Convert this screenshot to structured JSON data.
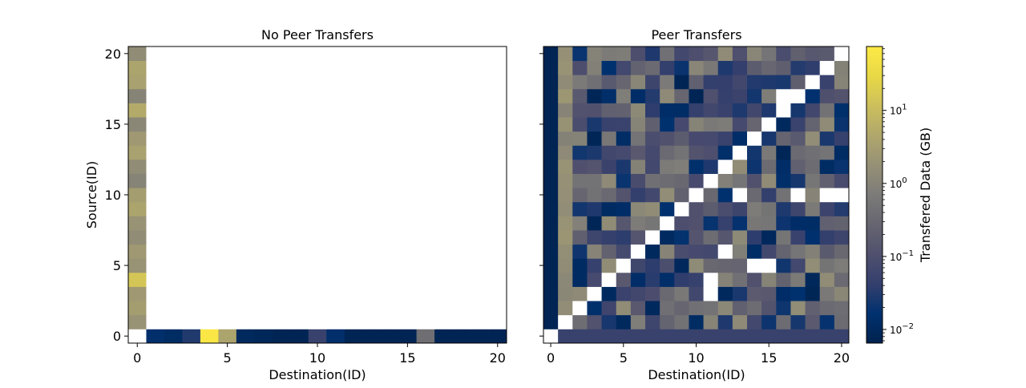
{
  "colors": {
    "colormap": "cividis",
    "nan": "#ffffff",
    "background": "#ffffff"
  },
  "chart_data": [
    {
      "type": "heatmap",
      "title": "No Peer Transfers",
      "xlabel": "Destination(ID)",
      "ylabel": "Source(ID)",
      "xlim": [
        -0.5,
        20.5
      ],
      "ylim": [
        -0.5,
        20.5
      ],
      "xticks": [
        0,
        5,
        10,
        15,
        20
      ],
      "yticks": [
        0,
        5,
        10,
        15,
        20
      ],
      "xtick_labels": [
        "0",
        "5",
        "10",
        "15",
        "20"
      ],
      "ytick_labels": [
        "0",
        "5",
        "10",
        "15",
        "20"
      ],
      "grid": false,
      "scale": "log",
      "note": "Only row 0 (source 0 -> all destinations) and column 0 (all sources -> destination 0) contain data; all other cells empty.",
      "row0_values_gb": [
        null,
        0.015,
        0.012,
        0.03,
        65.0,
        4.0,
        0.01,
        0.009,
        0.008,
        0.008,
        0.05,
        0.015,
        0.008,
        0.008,
        0.008,
        0.008,
        0.4,
        0.008,
        0.008,
        0.008,
        0.008
      ],
      "col0_values_gb": [
        null,
        2.0,
        3.0,
        2.5,
        15.0,
        2.0,
        2.5,
        1.5,
        2.0,
        4.0,
        3.0,
        1.0,
        1.5,
        3.5,
        2.5,
        1.2,
        5.0,
        1.0,
        3.5,
        4.0,
        1.5
      ]
    },
    {
      "type": "heatmap",
      "title": "Peer Transfers",
      "xlabel": "Destination(ID)",
      "ylabel": "",
      "xlim": [
        -0.5,
        20.5
      ],
      "ylim": [
        -0.5,
        20.5
      ],
      "xticks": [
        0,
        5,
        10,
        15,
        20
      ],
      "xtick_labels": [
        "0",
        "5",
        "10",
        "15",
        "20"
      ],
      "grid": false,
      "scale": "log",
      "note": "Diagonal cells empty (no self transfers); off-diagonal cells show peer-to-peer data in the range ~0.007 to ~3 GB."
    }
  ],
  "colorbar": {
    "label": "Transfered Data (GB)",
    "scale": "log",
    "range": [
      0.0065,
      75
    ],
    "ticks": [
      {
        "value": 0.01,
        "label": "10",
        "exp": "−2"
      },
      {
        "value": 0.1,
        "label": "10",
        "exp": "−1"
      },
      {
        "value": 1,
        "label": "10",
        "exp": "0"
      },
      {
        "value": 10,
        "label": "10",
        "exp": "1"
      }
    ]
  }
}
